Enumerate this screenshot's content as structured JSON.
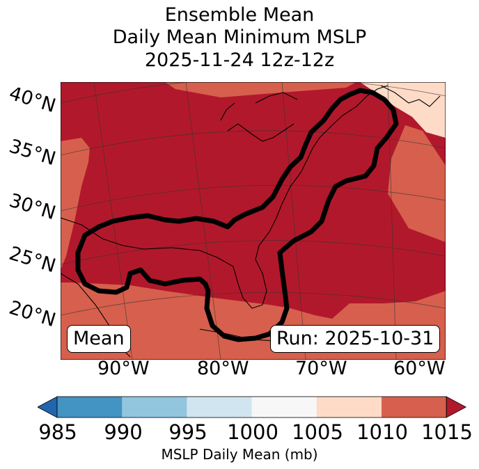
{
  "title": {
    "line1": "Ensemble Mean",
    "line2": "Daily Mean Minimum MSLP",
    "line3": "2025-11-24 12z-12z"
  },
  "map": {
    "lat_labels": [
      "40°N",
      "35°N",
      "30°N",
      "25°N",
      "20°N"
    ],
    "lon_labels": [
      "90°W",
      "80°W",
      "70°W",
      "60°W"
    ],
    "mean_label": "Mean",
    "run_label": "Run: 2025-10-31",
    "colors": {
      "1010-1015": "#b2182b",
      "1005-1010": "#d6604d",
      "1000-1005": "#fddbc7",
      "contour": "#000000",
      "coastline": "#000000"
    }
  },
  "colorbar": {
    "label": "MSLP Daily Mean (mb)",
    "ticks": [
      "985",
      "990",
      "995",
      "1000",
      "1005",
      "1010",
      "1015"
    ],
    "colors": [
      "#4393c3",
      "#92c5de",
      "#d1e5f0",
      "#f7f7f7",
      "#fddbc7",
      "#d6604d"
    ],
    "under_color": "#2166ac",
    "over_color": "#b2182b"
  }
}
